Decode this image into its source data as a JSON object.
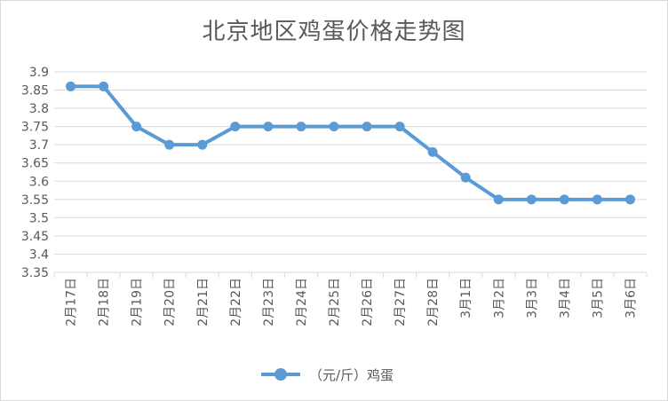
{
  "chart_data": {
    "type": "line",
    "title": "北京地区鸡蛋价格走势图",
    "categories": [
      "2月17日",
      "2月18日",
      "2月19日",
      "2月20日",
      "2月21日",
      "2月22日",
      "2月23日",
      "2月24日",
      "2月25日",
      "2月26日",
      "2月27日",
      "2月28日",
      "3月1日",
      "3月2日",
      "3月3日",
      "3月4日",
      "3月5日",
      "3月6日"
    ],
    "series": [
      {
        "name": "（元/斤）鸡蛋",
        "values": [
          3.86,
          3.86,
          3.75,
          3.7,
          3.7,
          3.75,
          3.75,
          3.75,
          3.75,
          3.75,
          3.75,
          3.68,
          3.61,
          3.55,
          3.55,
          3.55,
          3.55,
          3.55
        ]
      }
    ],
    "ylim": [
      3.35,
      3.9
    ],
    "yticks": [
      "3.9",
      "3.85",
      "3.8",
      "3.75",
      "3.7",
      "3.65",
      "3.6",
      "3.55",
      "3.5",
      "3.45",
      "3.4",
      "3.35"
    ],
    "grid": true,
    "legend": "bottom",
    "colors": {
      "series": "#5b9bd5",
      "grid": "#d9d9d9",
      "text": "#595959"
    }
  }
}
